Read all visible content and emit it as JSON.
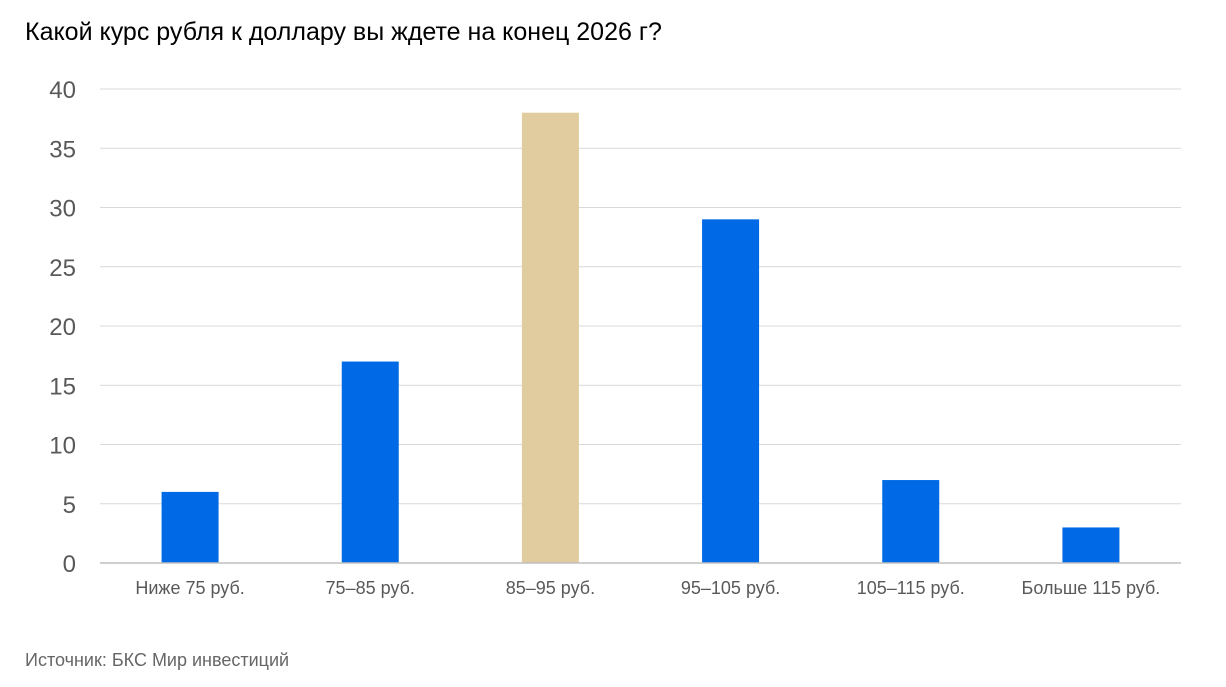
{
  "chart_data": {
    "type": "bar",
    "title": "Какой курс рубля к доллару вы ждете на конец 2026 г?",
    "source": "Источник: БКС Мир инвестиций",
    "categories": [
      "Ниже 75 руб.",
      "75–85 руб.",
      "85–95 руб.",
      "95–105 руб.",
      "105–115 руб.",
      "Больше 115 руб."
    ],
    "values": [
      6,
      17,
      38,
      29,
      7,
      3
    ],
    "colors": [
      "#0069E6",
      "#0069E6",
      "#E1CC9F",
      "#0069E6",
      "#0069E6",
      "#0069E6"
    ],
    "ylim": [
      0,
      40
    ],
    "yticks": [
      0,
      5,
      10,
      15,
      20,
      25,
      30,
      35,
      40
    ],
    "grid": true,
    "gridColor": "#D9D9D9",
    "axisColor": "#BFBFBF",
    "legend": "none"
  }
}
